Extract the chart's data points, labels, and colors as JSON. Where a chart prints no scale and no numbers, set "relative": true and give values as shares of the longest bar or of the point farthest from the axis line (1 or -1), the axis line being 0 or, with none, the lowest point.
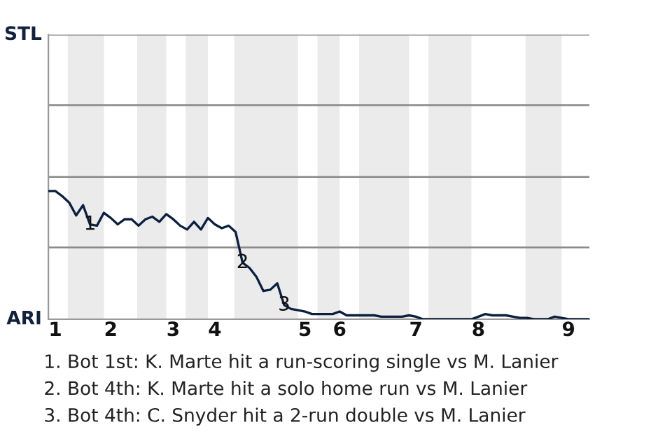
{
  "chart_data": {
    "type": "line",
    "relative": true,
    "categories": [
      null,
      "1",
      null,
      null,
      null,
      null,
      null,
      null,
      null,
      "2",
      null,
      null,
      null,
      null,
      null,
      null,
      null,
      null,
      "3",
      null,
      null,
      null,
      null,
      null,
      "4",
      null,
      null,
      null,
      null,
      null,
      null,
      null,
      null,
      null,
      null,
      null,
      null,
      "5",
      null,
      null,
      null,
      null,
      "6",
      null,
      null,
      null,
      null,
      null,
      null,
      null,
      null,
      null,
      null,
      "7",
      null,
      null,
      null,
      null,
      null,
      null,
      null,
      null,
      "8",
      null,
      null,
      null,
      null,
      null,
      null,
      null,
      null,
      null,
      null,
      null,
      null,
      "9",
      null,
      null,
      null
    ],
    "series": [
      {
        "color": "#0b1f3f",
        "values": [
          1,
          1,
          0.96,
          0.91,
          0.81,
          0.89,
          0.74,
          0.73,
          0.83,
          0.79,
          0.74,
          0.78,
          0.78,
          0.73,
          0.78,
          0.8,
          0.76,
          0.82,
          0.78,
          0.73,
          0.7,
          0.76,
          0.7,
          0.79,
          0.74,
          0.71,
          0.73,
          0.68,
          0.44,
          0.4,
          0.33,
          0.22,
          0.23,
          0.28,
          0.11,
          0.08,
          0.07,
          0.06,
          0.04,
          0.04,
          0.04,
          0.04,
          0.06,
          0.03,
          0.03,
          0.03,
          0.03,
          0.03,
          0.02,
          0.02,
          0.02,
          0.02,
          0.03,
          0.02,
          0,
          0,
          0,
          0,
          0,
          0,
          0,
          0,
          0.02,
          0.04,
          0.03,
          0.03,
          0.03,
          0.02,
          0.01,
          0.01,
          0,
          0,
          0,
          0.02,
          0.01,
          0,
          0,
          0,
          0
        ]
      }
    ],
    "ref_lines": [
      {
        "axis": "y",
        "value": 0.56,
        "color": "#888888"
      },
      {
        "axis": "y",
        "value": 1.11,
        "color": "#888888"
      },
      {
        "axis": "y",
        "value": 1.67,
        "color": "#888888"
      },
      {
        "axis": "y",
        "value": 2.22,
        "color": "#888888"
      }
    ],
    "marker": "none",
    "line_style": "solid",
    "annotations": [
      "STL",
      "ARI",
      {
        "text": "1",
        "y": 0.74
      },
      {
        "text": "2",
        "y": 0.44
      },
      {
        "text": "3",
        "y": 0.11
      },
      "1. Bot 1st: K. Marte hit a run-scoring single vs M. Lanier",
      "2. Bot 4th: K. Marte hit a solo home run vs M. Lanier",
      "3. Bot 4th: C. Snyder hit a 2-run double vs M. Lanier"
    ]
  }
}
